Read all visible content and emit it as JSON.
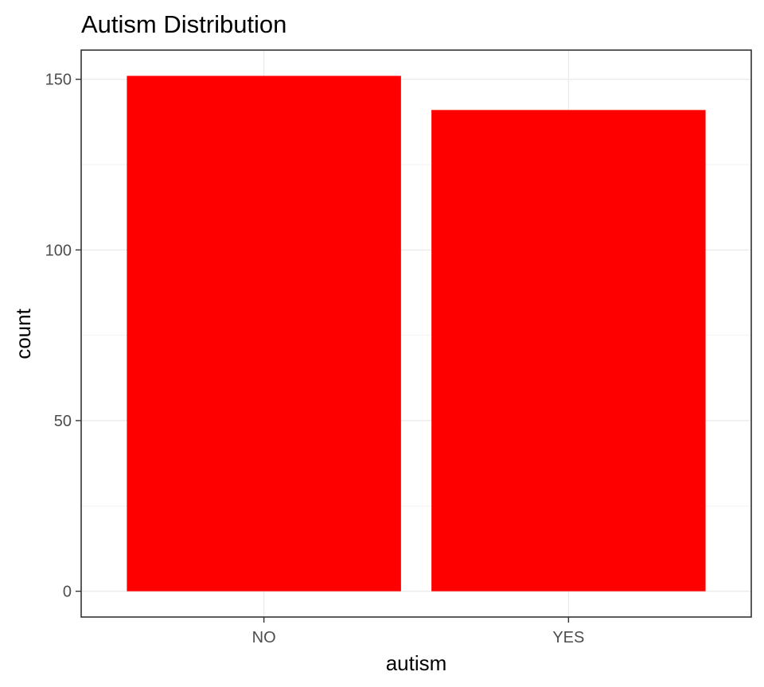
{
  "chart_data": {
    "type": "bar",
    "title": "Autism Distribution",
    "xlabel": "autism",
    "ylabel": "count",
    "categories": [
      "NO",
      "YES"
    ],
    "values": [
      151,
      141
    ],
    "ylim": [
      -7.55,
      158.55
    ],
    "yticks": [
      0,
      50,
      100,
      150
    ],
    "bar_color": "#ff0000",
    "grid": true,
    "legend": "none"
  }
}
